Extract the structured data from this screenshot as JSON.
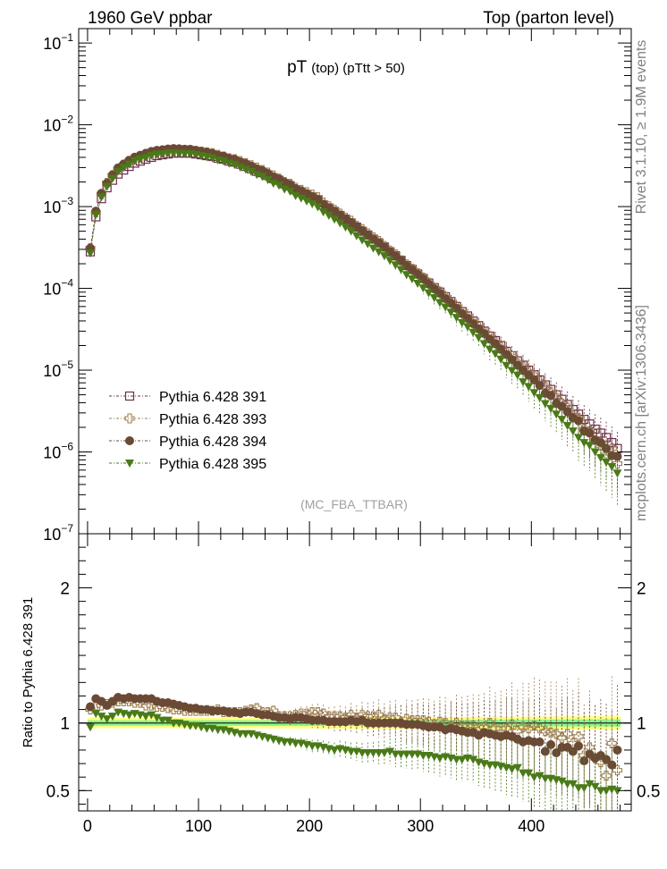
{
  "header": {
    "left": "1960 GeV ppbar",
    "right": "Top (parton level)"
  },
  "plot_title": {
    "main": "pT",
    "sub": "(top) (pTtt > 50)"
  },
  "analysis_tag": "(MC_FBA_TTBAR)",
  "side_text": {
    "version": "Rivet 3.1.10, ≥ 1.9M events",
    "source": "mcplots.cern.ch [arXiv:1306.3436]"
  },
  "ratio_ylabel": "Ratio to Pythia 6.428 391",
  "colors": {
    "s391": "#6b2f4a",
    "s393": "#a08050",
    "s394": "#6a4a35",
    "s395": "#4a7a18",
    "band_yellow": "#ffff80",
    "band_green": "#8cf08c"
  },
  "chart_data": [
    {
      "type": "scatter",
      "title": "pT (top) (pTtt > 50)",
      "xlim": [
        -8,
        490
      ],
      "ylim": [
        1e-07,
        0.15
      ],
      "ylog": true,
      "yticks": [
        "10^-7",
        "10^-6",
        "10^-5",
        "10^-4",
        "10^-3",
        "10^-2",
        "10^-1"
      ],
      "legend_position": "bottom-left",
      "x": [
        2.5,
        7.5,
        12.5,
        17.5,
        22.5,
        27.5,
        32.5,
        37.5,
        42.5,
        47.5,
        52.5,
        57.5,
        62.5,
        67.5,
        72.5,
        77.5,
        82.5,
        87.5,
        92.5,
        97.5,
        102.5,
        107.5,
        112.5,
        117.5,
        122.5,
        127.5,
        132.5,
        137.5,
        142.5,
        147.5,
        152.5,
        157.5,
        162.5,
        167.5,
        172.5,
        177.5,
        182.5,
        187.5,
        192.5,
        197.5,
        202.5,
        207.5,
        212.5,
        217.5,
        222.5,
        227.5,
        232.5,
        237.5,
        242.5,
        247.5,
        252.5,
        257.5,
        262.5,
        267.5,
        272.5,
        277.5,
        282.5,
        287.5,
        292.5,
        297.5,
        302.5,
        307.5,
        312.5,
        317.5,
        322.5,
        327.5,
        332.5,
        337.5,
        342.5,
        347.5,
        352.5,
        357.5,
        362.5,
        367.5,
        372.5,
        377.5,
        382.5,
        387.5,
        392.5,
        397.5,
        402.5,
        407.5,
        412.5,
        417.5,
        422.5,
        427.5,
        432.5,
        437.5,
        442.5,
        447.5,
        452.5,
        457.5,
        462.5,
        467.5,
        472.5,
        477.5
      ],
      "series": [
        {
          "name": "Pythia 6.428 391",
          "marker": "open-square",
          "values": [
            0.00028,
            0.00075,
            0.00125,
            0.0017,
            0.0021,
            0.0025,
            0.0028,
            0.0031,
            0.0034,
            0.0036,
            0.0038,
            0.004,
            0.0042,
            0.0043,
            0.0044,
            0.0045,
            0.0045,
            0.0045,
            0.0045,
            0.0044,
            0.0043,
            0.0042,
            0.0041,
            0.0039,
            0.0038,
            0.0036,
            0.0035,
            0.0033,
            0.0031,
            0.0029,
            0.0027,
            0.0026,
            0.0024,
            0.0022,
            0.0021,
            0.0019,
            0.0018,
            0.0016,
            0.0015,
            0.0014,
            0.0013,
            0.0012,
            0.00105,
            0.00096,
            0.00087,
            0.00078,
            0.0007,
            0.00063,
            0.00056,
            0.0005,
            0.00045,
            0.0004,
            0.00036,
            0.00032,
            0.00028,
            0.00025,
            0.00022,
            0.00019,
            0.00017,
            0.00015,
            0.000132,
            0.000116,
            0.000102,
            9e-05,
            7.9e-05,
            6.9e-05,
            6e-05,
            5.2e-05,
            4.6e-05,
            4e-05,
            3.5e-05,
            3e-05,
            2.6e-05,
            2.3e-05,
            2e-05,
            1.7e-05,
            1.5e-05,
            1.3e-05,
            1.15e-05,
            1e-05,
            8.8e-06,
            7.6e-06,
            6.6e-06,
            5.8e-06,
            5e-06,
            4.4e-06,
            3.8e-06,
            3.3e-06,
            2.9e-06,
            2.5e-06,
            2.2e-06,
            1.9e-06,
            1.7e-06,
            1.5e-06,
            1.3e-06,
            1.1e-06
          ]
        },
        {
          "name": "Pythia 6.428 393",
          "marker": "open-cross",
          "values": [
            0.00031,
            0.00085,
            0.00142,
            0.00195,
            0.00242,
            0.00289,
            0.00325,
            0.0036,
            0.0039,
            0.0041,
            0.0043,
            0.0045,
            0.0047,
            0.0048,
            0.0049,
            0.0049,
            0.0049,
            0.0049,
            0.0049,
            0.0048,
            0.0047,
            0.0046,
            0.0045,
            0.0043,
            0.0041,
            0.0039,
            0.0038,
            0.0036,
            0.0034,
            0.0032,
            0.003,
            0.0028,
            0.0026,
            0.0024,
            0.0022,
            0.002,
            0.0019,
            0.0017,
            0.0016,
            0.0015,
            0.0014,
            0.0013,
            0.00112,
            0.00101,
            0.00091,
            0.00082,
            0.00073,
            0.00067,
            0.00058,
            0.00053,
            0.00047,
            0.00042,
            0.00038,
            0.00033,
            0.00029,
            0.00026,
            0.00022,
            0.000196,
            0.000174,
            0.000153,
            0.000135,
            0.000117,
            0.000101,
            9.1e-05,
            7.9e-05,
            6.7e-05,
            6e-05,
            5.1e-05,
            4.5e-05,
            3.9e-05,
            3.4e-05,
            2.9e-05,
            2.6e-05,
            2.2e-05,
            1.92e-05,
            1.63e-05,
            1.48e-05,
            1.22e-05,
            1.11e-05,
            9.6e-06,
            8.6e-06,
            7.3e-06,
            6.2e-06,
            5.4e-06,
            4.6e-06,
            3.9e-06,
            3.5e-06,
            2.8e-06,
            2.6e-06,
            1.9e-06,
            1.8e-06,
            1.4e-06,
            1.2e-06,
            9.2e-07,
            1.1e-06,
            7.2e-07
          ]
        },
        {
          "name": "Pythia 6.428 394",
          "marker": "filled-circle",
          "values": [
            0.00031,
            0.00088,
            0.00145,
            0.00193,
            0.00244,
            0.00297,
            0.00331,
            0.00369,
            0.00403,
            0.00425,
            0.00449,
            0.00472,
            0.00487,
            0.00495,
            0.00506,
            0.00513,
            0.00509,
            0.00504,
            0.00501,
            0.00488,
            0.00473,
            0.00462,
            0.00447,
            0.00425,
            0.00414,
            0.00389,
            0.00378,
            0.00353,
            0.00335,
            0.00313,
            0.00289,
            0.00276,
            0.00254,
            0.00231,
            0.00218,
            0.00198,
            0.00186,
            0.00166,
            0.00156,
            0.00144,
            0.00133,
            0.00123,
            0.00107,
            0.00097,
            0.00088,
            0.00079,
            0.00071,
            0.00064,
            0.00057,
            0.00051,
            0.00045,
            0.0004,
            0.00036,
            0.00032,
            0.00028,
            0.00025,
            0.00022,
            0.000189,
            0.000168,
            0.000148,
            0.00013,
            0.000113,
            9.9e-05,
            8.7e-05,
            7.5e-05,
            6.6e-05,
            5.7e-05,
            4.9e-05,
            4.3e-05,
            3.7e-05,
            3.2e-05,
            2.8e-05,
            2.4e-05,
            2.1e-05,
            1.8e-05,
            1.55e-05,
            1.35e-05,
            1.15e-05,
            9.9e-06,
            8.7e-06,
            7.6e-06,
            6.5e-06,
            5.2e-06,
            4.9e-06,
            3.9e-06,
            3.6e-06,
            3.1e-06,
            2.6e-06,
            2.4e-06,
            1.8e-06,
            1.7e-06,
            1.4e-06,
            1.3e-06,
            1.1e-06,
            9e-07,
            8.8e-07
          ]
        },
        {
          "name": "Pythia 6.428 395",
          "marker": "filled-triangle-down",
          "values": [
            0.00027,
            0.0008,
            0.00131,
            0.00176,
            0.00221,
            0.0027,
            0.00301,
            0.0033,
            0.00364,
            0.00381,
            0.00399,
            0.00424,
            0.00437,
            0.00439,
            0.00451,
            0.00453,
            0.00449,
            0.00445,
            0.00442,
            0.00431,
            0.00418,
            0.00404,
            0.00393,
            0.00371,
            0.00359,
            0.00338,
            0.00326,
            0.00304,
            0.00286,
            0.00267,
            0.00246,
            0.00233,
            0.00213,
            0.00193,
            0.00182,
            0.00163,
            0.00154,
            0.00136,
            0.00127,
            0.00117,
            0.00108,
            0.00099,
            0.00086,
            0.00078,
            0.0007,
            0.00063,
            0.00056,
            0.0005,
            0.00044,
            0.00039,
            0.00035,
            0.00031,
            0.00028,
            0.00025,
            0.00022,
            0.000193,
            0.00017,
            0.000147,
            0.000131,
            0.000115,
            0.000101,
            8.8e-05,
            7.7e-05,
            6.7e-05,
            5.9e-05,
            5.1e-05,
            4.4e-05,
            3.8e-05,
            3.4e-05,
            2.9e-05,
            2.5e-05,
            2.1e-05,
            1.8e-05,
            1.59e-05,
            1.36e-05,
            1.14e-05,
            9.9e-06,
            8.7e-06,
            7.2e-06,
            6.3e-06,
            5.3e-06,
            4.6e-06,
            3.9e-06,
            3.4e-06,
            2.9e-06,
            2.5e-06,
            2.1e-06,
            1.8e-06,
            1.5e-06,
            1.3e-06,
            1.2e-06,
            1e-06,
            8.5e-07,
            7.5e-07,
            6.6e-07,
            5.5e-07
          ]
        }
      ]
    },
    {
      "type": "scatter",
      "title": "",
      "ylabel": "Ratio to Pythia 6.428 391",
      "xlim": [
        -8,
        490
      ],
      "ylim": [
        0.35,
        2.4
      ],
      "yticks": [
        0.5,
        1,
        2
      ],
      "xticks": [
        0,
        100,
        200,
        300,
        400
      ],
      "reference_line": 1,
      "series": [
        {
          "name": "Pythia 6.428 393",
          "values": [
            1.1,
            1.13,
            1.13,
            1.14,
            1.15,
            1.16,
            1.16,
            1.16,
            1.15,
            1.15,
            1.13,
            1.13,
            1.12,
            1.12,
            1.11,
            1.1,
            1.1,
            1.09,
            1.09,
            1.09,
            1.09,
            1.09,
            1.09,
            1.1,
            1.08,
            1.08,
            1.08,
            1.08,
            1.09,
            1.1,
            1.11,
            1.08,
            1.08,
            1.09,
            1.05,
            1.05,
            1.05,
            1.06,
            1.07,
            1.07,
            1.08,
            1.08,
            1.07,
            1.05,
            1.05,
            1.05,
            1.04,
            1.06,
            1.04,
            1.06,
            1.05,
            1.05,
            1.06,
            1.03,
            1.04,
            1.04,
            1.0,
            1.03,
            1.02,
            1.02,
            1.02,
            1.01,
            0.99,
            1.01,
            1.0,
            0.97,
            1.0,
            0.98,
            0.98,
            0.98,
            0.97,
            0.97,
            1.0,
            0.96,
            0.96,
            0.96,
            0.99,
            0.94,
            0.97,
            0.96,
            0.98,
            0.96,
            0.94,
            0.93,
            0.92,
            0.89,
            0.92,
            0.85,
            0.9,
            0.76,
            0.82,
            0.74,
            0.71,
            0.61,
            0.85,
            0.65
          ]
        },
        {
          "name": "Pythia 6.428 394",
          "values": [
            1.12,
            1.18,
            1.16,
            1.13,
            1.16,
            1.19,
            1.18,
            1.19,
            1.18,
            1.18,
            1.18,
            1.18,
            1.16,
            1.15,
            1.15,
            1.14,
            1.13,
            1.12,
            1.11,
            1.11,
            1.1,
            1.1,
            1.09,
            1.09,
            1.09,
            1.08,
            1.08,
            1.07,
            1.08,
            1.08,
            1.07,
            1.06,
            1.06,
            1.05,
            1.04,
            1.04,
            1.03,
            1.04,
            1.04,
            1.03,
            1.02,
            1.02,
            1.02,
            1.01,
            1.01,
            1.01,
            1.01,
            1.02,
            1.01,
            1.02,
            1.0,
            1.0,
            1.0,
            1.0,
            1.0,
            1.0,
            1.0,
            0.99,
            0.99,
            0.99,
            0.98,
            0.97,
            0.97,
            0.97,
            0.95,
            0.96,
            0.95,
            0.94,
            0.93,
            0.93,
            0.91,
            0.93,
            0.92,
            0.91,
            0.9,
            0.91,
            0.9,
            0.88,
            0.86,
            0.87,
            0.86,
            0.86,
            0.79,
            0.84,
            0.78,
            0.82,
            0.82,
            0.79,
            0.83,
            0.72,
            0.77,
            0.74,
            0.76,
            0.73,
            0.69,
            0.8
          ]
        },
        {
          "name": "Pythia 6.428 395",
          "values": [
            0.97,
            1.07,
            1.05,
            1.03,
            1.05,
            1.08,
            1.07,
            1.06,
            1.07,
            1.06,
            1.05,
            1.06,
            1.04,
            1.02,
            1.02,
            1.0,
            1.0,
            0.99,
            0.98,
            0.98,
            0.97,
            0.96,
            0.96,
            0.95,
            0.95,
            0.94,
            0.93,
            0.92,
            0.92,
            0.92,
            0.91,
            0.9,
            0.89,
            0.88,
            0.87,
            0.86,
            0.86,
            0.85,
            0.85,
            0.84,
            0.83,
            0.83,
            0.82,
            0.81,
            0.8,
            0.81,
            0.8,
            0.79,
            0.79,
            0.78,
            0.78,
            0.78,
            0.78,
            0.78,
            0.79,
            0.77,
            0.77,
            0.77,
            0.77,
            0.77,
            0.76,
            0.76,
            0.75,
            0.74,
            0.75,
            0.74,
            0.73,
            0.73,
            0.74,
            0.73,
            0.71,
            0.7,
            0.69,
            0.69,
            0.68,
            0.67,
            0.66,
            0.67,
            0.63,
            0.63,
            0.6,
            0.61,
            0.59,
            0.59,
            0.58,
            0.57,
            0.55,
            0.55,
            0.52,
            0.52,
            0.55,
            0.53,
            0.5,
            0.5,
            0.51,
            0.5
          ]
        }
      ]
    }
  ]
}
